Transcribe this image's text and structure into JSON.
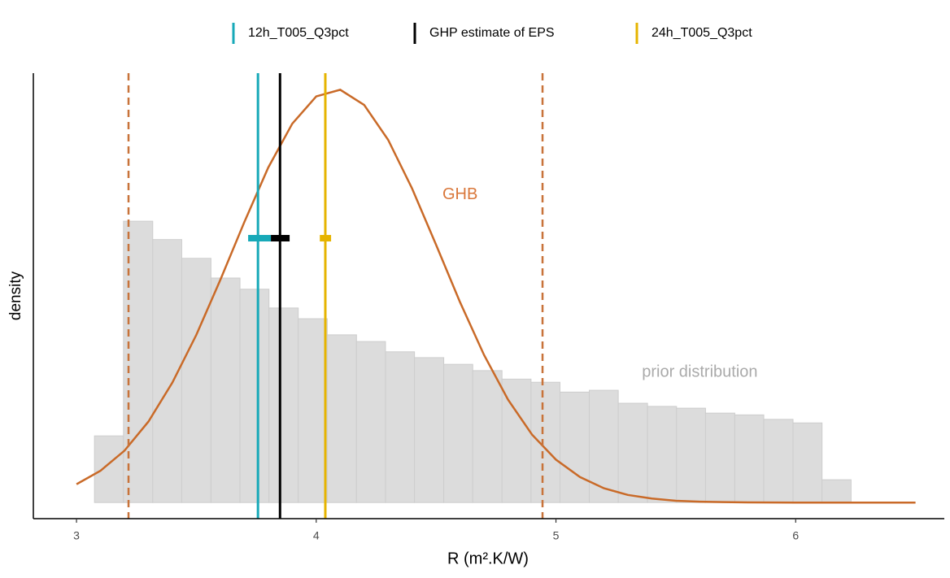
{
  "chart_data": {
    "type": "histogram",
    "xlabel": "R (m².K/W)",
    "ylabel": "density",
    "xlim": [
      2.82,
      6.62
    ],
    "xticks": [
      3,
      4,
      5,
      6
    ],
    "ylim": [
      -0.036,
      0.96
    ],
    "bins": [
      3.075,
      3.196,
      3.318,
      3.439,
      3.561,
      3.682,
      3.803,
      3.925,
      4.046,
      4.168,
      4.289,
      4.41,
      4.532,
      4.653,
      4.775,
      4.896,
      5.017,
      5.139,
      5.26,
      5.382,
      5.503,
      5.624,
      5.746,
      5.867,
      5.989,
      6.11,
      6.231
    ],
    "values": [
      0.149,
      0.629,
      0.588,
      0.546,
      0.502,
      0.477,
      0.435,
      0.411,
      0.375,
      0.36,
      0.337,
      0.324,
      0.309,
      0.295,
      0.276,
      0.269,
      0.247,
      0.251,
      0.222,
      0.215,
      0.211,
      0.2,
      0.196,
      0.186,
      0.178,
      0.051
    ],
    "color": "#dcdcdc",
    "curve": {
      "color": "#c96a28",
      "x": [
        3.0,
        3.1,
        3.2,
        3.3,
        3.4,
        3.5,
        3.6,
        3.7,
        3.8,
        3.9,
        4.0,
        4.1,
        4.2,
        4.3,
        4.4,
        4.5,
        4.6,
        4.7,
        4.8,
        4.9,
        5.0,
        5.1,
        5.2,
        5.3,
        5.4,
        5.5,
        5.6,
        5.7,
        5.8,
        5.9,
        6.0,
        6.1,
        6.2,
        6.3,
        6.4,
        6.5
      ],
      "values": [
        0.041,
        0.071,
        0.116,
        0.181,
        0.268,
        0.375,
        0.498,
        0.627,
        0.749,
        0.847,
        0.908,
        0.923,
        0.889,
        0.811,
        0.702,
        0.576,
        0.448,
        0.33,
        0.23,
        0.152,
        0.096,
        0.057,
        0.032,
        0.017,
        0.009,
        0.004,
        0.002,
        0.001,
        0.0003,
        0.0001,
        0,
        0,
        0,
        0,
        0,
        0
      ]
    },
    "bounds": {
      "color": "#c8733a",
      "x": [
        3.217,
        4.944
      ]
    },
    "series": [
      {
        "name": "12h_T005_Q3pct",
        "color": "#17a9b8",
        "x": 3.757,
        "interval": [
          3.716,
          3.811
        ],
        "y": 0.591
      },
      {
        "name": "GHP estimate of EPS",
        "color": "#000000",
        "x": 3.849,
        "interval": [
          3.811,
          3.889
        ],
        "y": 0.591
      },
      {
        "name": "24h_T005_Q3pct",
        "color": "#e6b400",
        "x": 4.038,
        "interval": [
          4.015,
          4.062
        ],
        "y": 0.591
      }
    ],
    "annotations": [
      {
        "text": "GHB",
        "x": 4.6,
        "y": 0.688,
        "color": "#d9773a"
      },
      {
        "text": "prior distribution",
        "x": 5.6,
        "y": 0.291,
        "color": "#aaaaaa"
      }
    ]
  }
}
